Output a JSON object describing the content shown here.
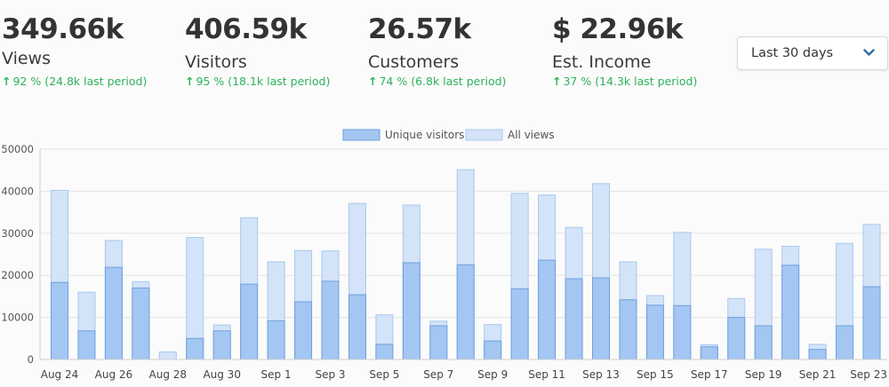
{
  "stats": [
    {
      "value": "349.66k",
      "label": "Views",
      "change": "92 % (24.8k last period)"
    },
    {
      "value": "406.59k",
      "label": "Visitors",
      "change": "95 % (18.1k last period)"
    },
    {
      "value": "26.57k",
      "label": "Customers",
      "change": "74 % (6.8k last period)"
    },
    {
      "value": "$ 22.96k",
      "label": "Est. Income",
      "change": "37 % (14.3k last period)"
    }
  ],
  "range_select": {
    "selected": "Last 30 days"
  },
  "icons": {
    "change_arrow": "arrow-up-icon",
    "dropdown": "chevron-down-icon"
  },
  "colors": {
    "positive": "#2fb05c",
    "dropdown_chevron": "#2f6fa8"
  },
  "chart_data": {
    "type": "bar",
    "stacked": false,
    "overlapping": true,
    "legend_position": "top-center",
    "grid": true,
    "ylim": [
      0,
      50000
    ],
    "yticks": [
      "0",
      "10000",
      "20000",
      "30000",
      "40000",
      "50000"
    ],
    "categories": [
      "Aug 24",
      "Aug 25",
      "Aug 26",
      "Aug 27",
      "Aug 28",
      "Aug 29",
      "Aug 30",
      "Aug 31",
      "Sep 1",
      "Sep 2",
      "Sep 3",
      "Sep 4",
      "Sep 5",
      "Sep 6",
      "Sep 7",
      "Sep 8",
      "Sep 9",
      "Sep 10",
      "Sep 11",
      "Sep 12",
      "Sep 13",
      "Sep 14",
      "Sep 15",
      "Sep 16",
      "Sep 17",
      "Sep 18",
      "Sep 19",
      "Sep 20",
      "Sep 21",
      "Sep 22",
      "Sep 23"
    ],
    "xtick_labels": [
      "Aug 24",
      "Aug 26",
      "Aug 28",
      "Aug 30",
      "Sep 1",
      "Sep 3",
      "Sep 5",
      "Sep 7",
      "Sep 9",
      "Sep 11",
      "Sep 13",
      "Sep 15",
      "Sep 17",
      "Sep 19",
      "Sep 21",
      "Sep 23"
    ],
    "series": [
      {
        "name": "Unique visitors",
        "color": "#a4c6f2",
        "border": "#6f9fdc",
        "values": [
          18300,
          6800,
          21900,
          17000,
          0,
          5000,
          6800,
          17900,
          9200,
          13700,
          18600,
          15400,
          3600,
          23000,
          8000,
          22500,
          4400,
          16800,
          23600,
          19200,
          19400,
          14200,
          12900,
          12800,
          3000,
          10000,
          8000,
          22400,
          2400,
          8000,
          17300
        ]
      },
      {
        "name": "All views",
        "color": "#d3e3f8",
        "border": "#a9c8ee",
        "values": [
          40200,
          16000,
          28300,
          18500,
          1800,
          29000,
          8200,
          33700,
          23200,
          25900,
          25800,
          37100,
          10600,
          36700,
          9100,
          45100,
          8300,
          39500,
          39100,
          31400,
          41800,
          23200,
          15200,
          30200,
          3500,
          14500,
          26200,
          26900,
          3600,
          27600,
          32100
        ]
      }
    ]
  }
}
